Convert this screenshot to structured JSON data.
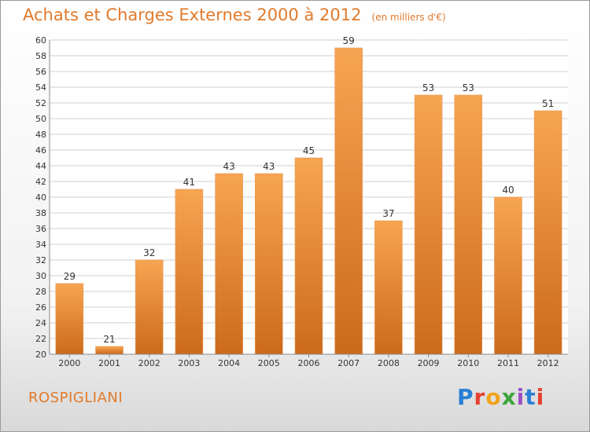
{
  "header": {
    "title": "Achats et Charges Externes 2000 à 2012",
    "subtitle": "(en milliers d'€)"
  },
  "footer": {
    "commune": "ROSPIGLIANI",
    "logo": [
      "P",
      "r",
      "o",
      "x",
      "i",
      "t",
      "i"
    ]
  },
  "colors": {
    "bar_top": "#f7a552",
    "bar_bottom": "#cc6a1c",
    "title": "#e07a2b"
  },
  "chart_data": {
    "type": "bar",
    "title": "Achats et Charges Externes 2000 à 2012",
    "subtitle": "(en milliers d'€)",
    "xlabel": "",
    "ylabel": "",
    "categories": [
      "2000",
      "2001",
      "2002",
      "2003",
      "2004",
      "2005",
      "2006",
      "2007",
      "2008",
      "2009",
      "2010",
      "2011",
      "2012"
    ],
    "values": [
      29,
      21,
      32,
      41,
      43,
      43,
      45,
      59,
      37,
      53,
      53,
      40,
      51
    ],
    "ylim": [
      20,
      60
    ],
    "yticks": [
      20,
      22,
      24,
      26,
      28,
      30,
      32,
      34,
      36,
      38,
      40,
      42,
      44,
      46,
      48,
      50,
      52,
      54,
      56,
      58,
      60
    ],
    "grid": true,
    "data_labels": true
  }
}
